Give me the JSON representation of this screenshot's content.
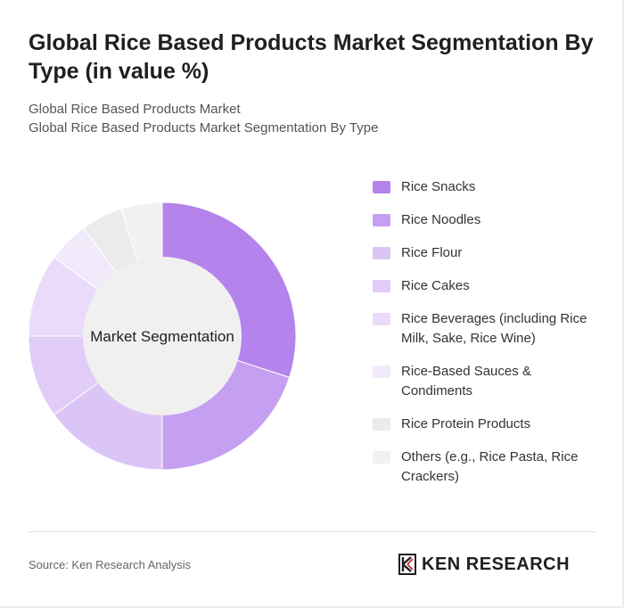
{
  "title": "Global Rice Based Products Market Segmentation By Type (in value %)",
  "breadcrumb": {
    "line1": "Global Rice Based Products Market",
    "line2": "Global Rice Based Products Market Segmentation By Type"
  },
  "chart_data": {
    "type": "pie",
    "variant": "donut",
    "center_label": "Market Segmentation",
    "categories": [
      "Rice Snacks",
      "Rice Noodles",
      "Rice Flour",
      "Rice Cakes",
      "Rice Beverages (including Rice Milk, Sake, Rice Wine)",
      "Rice-Based Sauces & Condiments",
      "Rice Protein Products",
      "Others (e.g., Rice Pasta, Rice Crackers)"
    ],
    "values": [
      30,
      20,
      15,
      10,
      10,
      5,
      5,
      5
    ],
    "colors": [
      "#b483ec",
      "#c59ff0",
      "#dbc5f6",
      "#e0ccf7",
      "#e9dbf9",
      "#f1eafb",
      "#ebebeb",
      "#f1f1f1"
    ],
    "legend_position": "right"
  },
  "footer": {
    "source": "Source: Ken Research Analysis",
    "brand": "KEN RESEARCH"
  }
}
